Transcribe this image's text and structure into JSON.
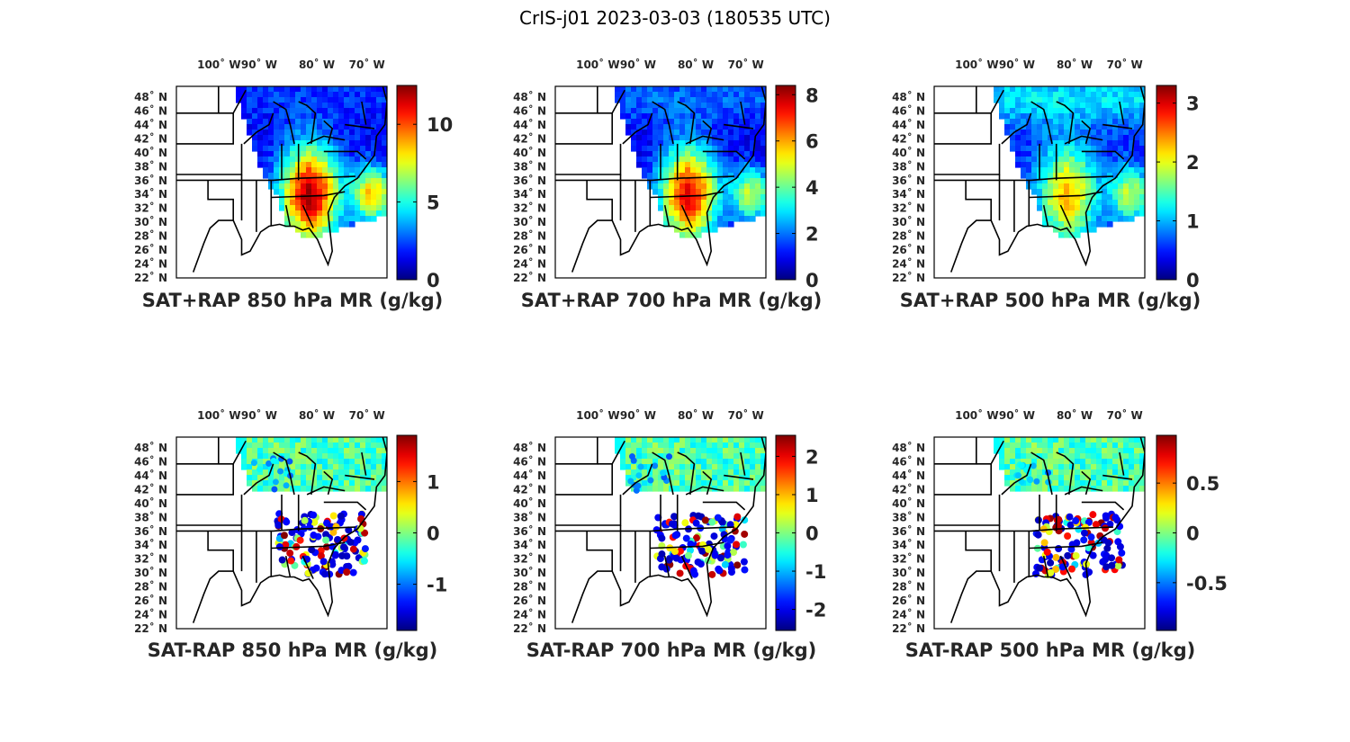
{
  "figure_title": "CrIS-j01 2023-03-03 (180535 UTC)",
  "lon_ticks": [
    "100˚ W",
    "90˚ W",
    "80˚ W",
    "70˚ W"
  ],
  "lat_ticks": [
    "48˚ N",
    "46˚ N",
    "44˚ N",
    "42˚ N",
    "40˚ N",
    "38˚ N",
    "36˚ N",
    "34˚ N",
    "32˚ N",
    "30˚ N",
    "28˚ N",
    "26˚ N",
    "24˚ N",
    "22˚ N"
  ],
  "panels": [
    {
      "title": "SAT+RAP 850 hPa MR (g/kg)",
      "kind": "total",
      "level": "850",
      "colorbar": {
        "min": 0,
        "max": 12.5,
        "ticks": [
          {
            "v": 0,
            "label": "0"
          },
          {
            "v": 5,
            "label": "5"
          },
          {
            "v": 10,
            "label": "10"
          }
        ]
      }
    },
    {
      "title": "SAT+RAP 700 hPa MR (g/kg)",
      "kind": "total",
      "level": "700",
      "colorbar": {
        "min": 0,
        "max": 8.4,
        "ticks": [
          {
            "v": 0,
            "label": "0"
          },
          {
            "v": 2,
            "label": "2"
          },
          {
            "v": 4,
            "label": "4"
          },
          {
            "v": 6,
            "label": "6"
          },
          {
            "v": 8,
            "label": "8"
          }
        ]
      }
    },
    {
      "title": "SAT+RAP 500 hPa MR (g/kg)",
      "kind": "total",
      "level": "500",
      "colorbar": {
        "min": 0,
        "max": 3.3,
        "ticks": [
          {
            "v": 0,
            "label": "0"
          },
          {
            "v": 1,
            "label": "1"
          },
          {
            "v": 2,
            "label": "2"
          },
          {
            "v": 3,
            "label": "3"
          }
        ]
      }
    },
    {
      "title": "SAT-RAP 850 hPa MR (g/kg)",
      "kind": "diff",
      "level": "850",
      "colorbar": {
        "min": -1.9,
        "max": 1.9,
        "ticks": [
          {
            "v": -1,
            "label": "-1"
          },
          {
            "v": 0,
            "label": "0"
          },
          {
            "v": 1,
            "label": "1"
          }
        ]
      }
    },
    {
      "title": "SAT-RAP 700 hPa MR (g/kg)",
      "kind": "diff",
      "level": "700",
      "colorbar": {
        "min": -2.55,
        "max": 2.55,
        "ticks": [
          {
            "v": -2,
            "label": "-2"
          },
          {
            "v": -1,
            "label": "-1"
          },
          {
            "v": 0,
            "label": "0"
          },
          {
            "v": 1,
            "label": "1"
          },
          {
            "v": 2,
            "label": "2"
          }
        ]
      }
    },
    {
      "title": "SAT-RAP 500 hPa MR (g/kg)",
      "kind": "diff",
      "level": "500",
      "colorbar": {
        "min": -0.98,
        "max": 0.98,
        "ticks": [
          {
            "v": -0.5,
            "label": "-0.5"
          },
          {
            "v": 0,
            "label": "0"
          },
          {
            "v": 0.5,
            "label": "0.5"
          }
        ]
      }
    }
  ],
  "colormap": "jet",
  "map_extent": {
    "lon": [
      -108,
      -66
    ],
    "lat": [
      22,
      50
    ]
  }
}
